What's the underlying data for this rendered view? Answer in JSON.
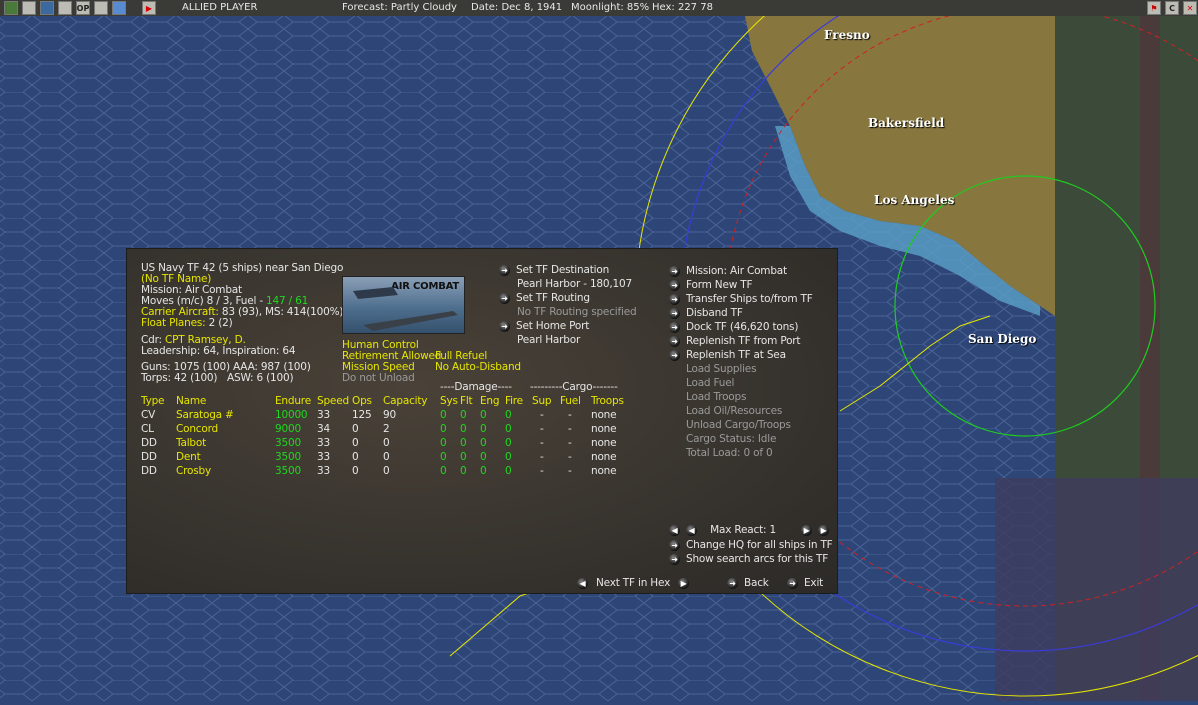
{
  "topbar": {
    "player": "ALLIED PLAYER",
    "forecast": "Forecast: Partly Cloudy",
    "date": "Date: Dec 8, 1941",
    "moonlight": "Moonlight: 85%",
    "hex": "Hex: 227 78",
    "icons": [
      "unit-icon",
      "base-icon",
      "globe-icon",
      "clock-icon",
      "op-icon",
      "report-icon",
      "weather-icon",
      "end-turn-icon"
    ],
    "op_label": "OP",
    "right_icons": [
      "flag-icon",
      "c-icon",
      "close-icon"
    ],
    "c_label": "C"
  },
  "map": {
    "cities": [
      "Fresno",
      "Bakersfield",
      "Los Angeles",
      "San Diego"
    ],
    "colors": {
      "ocean": "#2e4677",
      "land": "#8a7a44",
      "range_blue": "#3b3bd6",
      "range_green": "#1ecc1e",
      "range_yellow": "#e6e600",
      "range_red": "#d02020"
    }
  },
  "panel": {
    "header": "US Navy TF 42 (5 ships)  near San Diego",
    "tf_name": "(No TF Name)",
    "mission": "Mission:  Air Combat",
    "moves": "Moves (m/c)  8 / 3, Fuel - ",
    "fuel": "147 / 61",
    "carrier_label": "Carrier Aircraft:",
    "carrier_value": " 83 (93),  MS: 414(100%)",
    "float_label": "Float Planes:",
    "float_value": " 2 (2)",
    "cdr_label": "Cdr:  ",
    "cdr_value": "CPT  Ramsey, D.",
    "leadership": "Leadership: 64, Inspiration: 64",
    "guns": "Guns: 1075 (100)  AAA: 987 (100)",
    "torps": "Torps: 42 (100)",
    "asw": "ASW: 6 (100)",
    "image_label": "AIR COMBAT",
    "settings": {
      "control": "Human Control",
      "retirement": "Retirement Allowed",
      "refuel": "Full Refuel",
      "speed": "Mission Speed",
      "disband": "No Auto-Disband",
      "unload": "Do not Unload"
    },
    "nav": {
      "dest_btn": "Set TF Destination",
      "dest_value": "Pearl Harbor - 180,107",
      "routing_btn": "Set TF Routing",
      "routing_value": "No TF Routing specified",
      "home_btn": "Set Home Port",
      "home_value": "Pearl Harbor"
    },
    "actions": [
      "Mission: Air Combat",
      "Form New TF",
      "Transfer Ships to/from TF",
      "Disband TF",
      "Dock TF (46,620 tons)",
      "Replenish TF from Port",
      "Replenish TF at Sea"
    ],
    "cargo_actions": [
      "Load Supplies",
      "Load Fuel",
      "Load Troops",
      "Load Oil/Resources",
      "Unload Cargo/Troops",
      "Cargo Status: Idle",
      "Total Load: 0 of 0"
    ],
    "table": {
      "group_damage": "----Damage----",
      "group_cargo": "---------Cargo-------",
      "headers": [
        "Type",
        "Name",
        "Endure",
        "Speed",
        "Ops",
        "Capacity",
        "Sys",
        "Flt",
        "Eng",
        "Fire",
        "Sup",
        "Fuel",
        "Troops"
      ],
      "rows": [
        [
          "CV",
          "Saratoga #",
          "10000",
          "33",
          "125",
          "90",
          "0",
          "0",
          "0",
          "0",
          "-",
          "-",
          "none"
        ],
        [
          "CL",
          "Concord",
          "9000",
          "34",
          "0",
          "2",
          "0",
          "0",
          "0",
          "0",
          "-",
          "-",
          "none"
        ],
        [
          "DD",
          "Talbot",
          "3500",
          "33",
          "0",
          "0",
          "0",
          "0",
          "0",
          "0",
          "-",
          "-",
          "none"
        ],
        [
          "DD",
          "Dent",
          "3500",
          "33",
          "0",
          "0",
          "0",
          "0",
          "0",
          "0",
          "-",
          "-",
          "none"
        ],
        [
          "DD",
          "Crosby",
          "3500",
          "33",
          "0",
          "0",
          "0",
          "0",
          "0",
          "0",
          "-",
          "-",
          "none"
        ]
      ]
    },
    "max_react": "Max React:  1",
    "change_hq": "Change HQ for all ships in TF",
    "search_arcs": "Show search arcs for this TF",
    "next_tf": "Next TF in Hex",
    "back": "Back",
    "exit": "Exit"
  }
}
